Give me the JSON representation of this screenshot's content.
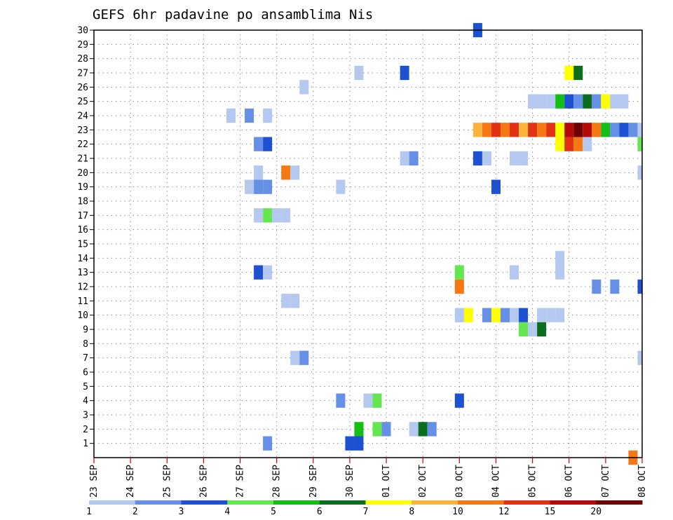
{
  "chart_data": {
    "type": "heatmap",
    "title": "GEFS 6hr padavine po ansamblima Nis",
    "xlabel": "",
    "ylabel": "",
    "x_ticks": [
      "23 SEP",
      "24 SEP",
      "25 SEP",
      "26 SEP",
      "27 SEP",
      "28 SEP",
      "29 SEP",
      "30 SEP",
      "01 OCT",
      "02 OCT",
      "03 OCT",
      "04 OCT",
      "05 OCT",
      "06 OCT",
      "07 OCT",
      "08 OCT"
    ],
    "y_ticks": [
      "1",
      "2",
      "3",
      "4",
      "5",
      "6",
      "7",
      "8",
      "9",
      "10",
      "11",
      "12",
      "13",
      "14",
      "15",
      "16",
      "17",
      "18",
      "19",
      "20",
      "21",
      "22",
      "23",
      "24",
      "25",
      "26",
      "27",
      "28",
      "29",
      "30"
    ],
    "xlim_days": [
      0,
      15
    ],
    "ylim": [
      0,
      30
    ],
    "grid": true,
    "colorbar": {
      "labels": [
        "1",
        "2",
        "3",
        "4",
        "5",
        "6",
        "7",
        "8",
        "10",
        "12",
        "15",
        "20"
      ],
      "colors": [
        "#b4c8f0",
        "#6690e6",
        "#1e50d2",
        "#64e650",
        "#14be14",
        "#0a6e1e",
        "#ffff00",
        "#fab43c",
        "#f57814",
        "#e13214",
        "#b40a0a",
        "#6e0000"
      ]
    },
    "cells": [
      {
        "m": 30,
        "d": 10.5,
        "c": 3
      },
      {
        "m": 27,
        "d": 7.25,
        "c": 1
      },
      {
        "m": 27,
        "d": 8.5,
        "c": 3
      },
      {
        "m": 27,
        "d": 13.0,
        "c": 7
      },
      {
        "m": 27,
        "d": 13.25,
        "c": 6
      },
      {
        "m": 26,
        "d": 5.75,
        "c": 1
      },
      {
        "m": 25,
        "d": 12.0,
        "c": 1
      },
      {
        "m": 25,
        "d": 12.25,
        "c": 1
      },
      {
        "m": 25,
        "d": 12.5,
        "c": 1
      },
      {
        "m": 25,
        "d": 12.75,
        "c": 5
      },
      {
        "m": 25,
        "d": 13.0,
        "c": 3
      },
      {
        "m": 25,
        "d": 13.25,
        "c": 2
      },
      {
        "m": 25,
        "d": 13.5,
        "c": 6
      },
      {
        "m": 25,
        "d": 13.75,
        "c": 2
      },
      {
        "m": 25,
        "d": 14.0,
        "c": 7
      },
      {
        "m": 25,
        "d": 14.25,
        "c": 1
      },
      {
        "m": 25,
        "d": 14.5,
        "c": 1
      },
      {
        "m": 24,
        "d": 3.75,
        "c": 1
      },
      {
        "m": 24,
        "d": 4.25,
        "c": 2
      },
      {
        "m": 24,
        "d": 4.75,
        "c": 1
      },
      {
        "m": 23,
        "d": 10.5,
        "c": 8
      },
      {
        "m": 23,
        "d": 10.75,
        "c": 9
      },
      {
        "m": 23,
        "d": 11.0,
        "c": 10
      },
      {
        "m": 23,
        "d": 11.25,
        "c": 9
      },
      {
        "m": 23,
        "d": 11.5,
        "c": 10
      },
      {
        "m": 23,
        "d": 11.75,
        "c": 8
      },
      {
        "m": 23,
        "d": 12.0,
        "c": 10
      },
      {
        "m": 23,
        "d": 12.25,
        "c": 9
      },
      {
        "m": 23,
        "d": 12.5,
        "c": 10
      },
      {
        "m": 23,
        "d": 12.75,
        "c": 7
      },
      {
        "m": 23,
        "d": 13.0,
        "c": 11
      },
      {
        "m": 23,
        "d": 13.25,
        "c": 12
      },
      {
        "m": 23,
        "d": 13.5,
        "c": 11
      },
      {
        "m": 23,
        "d": 13.75,
        "c": 9
      },
      {
        "m": 23,
        "d": 14.0,
        "c": 5
      },
      {
        "m": 23,
        "d": 14.25,
        "c": 2
      },
      {
        "m": 23,
        "d": 14.5,
        "c": 3
      },
      {
        "m": 23,
        "d": 14.75,
        "c": 2
      },
      {
        "m": 23,
        "d": 15.0,
        "c": 1
      },
      {
        "m": 22,
        "d": 4.5,
        "c": 2
      },
      {
        "m": 22,
        "d": 4.75,
        "c": 3
      },
      {
        "m": 22,
        "d": 12.75,
        "c": 7
      },
      {
        "m": 22,
        "d": 13.0,
        "c": 10
      },
      {
        "m": 22,
        "d": 13.25,
        "c": 9
      },
      {
        "m": 22,
        "d": 13.5,
        "c": 1
      },
      {
        "m": 22,
        "d": 15.0,
        "c": 4
      },
      {
        "m": 21,
        "d": 8.5,
        "c": 1
      },
      {
        "m": 21,
        "d": 8.75,
        "c": 2
      },
      {
        "m": 21,
        "d": 10.5,
        "c": 3
      },
      {
        "m": 21,
        "d": 10.75,
        "c": 1
      },
      {
        "m": 21,
        "d": 11.5,
        "c": 1
      },
      {
        "m": 21,
        "d": 11.75,
        "c": 1
      },
      {
        "m": 20,
        "d": 4.5,
        "c": 1
      },
      {
        "m": 20,
        "d": 5.25,
        "c": 9
      },
      {
        "m": 20,
        "d": 5.5,
        "c": 1
      },
      {
        "m": 20,
        "d": 15.0,
        "c": 1
      },
      {
        "m": 19,
        "d": 4.25,
        "c": 1
      },
      {
        "m": 19,
        "d": 4.5,
        "c": 2
      },
      {
        "m": 19,
        "d": 4.75,
        "c": 2
      },
      {
        "m": 19,
        "d": 6.75,
        "c": 1
      },
      {
        "m": 19,
        "d": 11.0,
        "c": 3
      },
      {
        "m": 17,
        "d": 4.5,
        "c": 1
      },
      {
        "m": 17,
        "d": 4.75,
        "c": 4
      },
      {
        "m": 17,
        "d": 5.0,
        "c": 1
      },
      {
        "m": 17,
        "d": 5.25,
        "c": 1
      },
      {
        "m": 14,
        "d": 12.75,
        "c": 1
      },
      {
        "m": 13,
        "d": 4.5,
        "c": 3
      },
      {
        "m": 13,
        "d": 4.75,
        "c": 1
      },
      {
        "m": 13,
        "d": 10.0,
        "c": 4
      },
      {
        "m": 13,
        "d": 11.5,
        "c": 1
      },
      {
        "m": 13,
        "d": 12.75,
        "c": 1
      },
      {
        "m": 12,
        "d": 10.0,
        "c": 9
      },
      {
        "m": 12,
        "d": 13.75,
        "c": 2
      },
      {
        "m": 12,
        "d": 14.25,
        "c": 2
      },
      {
        "m": 12,
        "d": 15.0,
        "c": 3
      },
      {
        "m": 11,
        "d": 5.25,
        "c": 1
      },
      {
        "m": 11,
        "d": 5.5,
        "c": 1
      },
      {
        "m": 10,
        "d": 10.0,
        "c": 1
      },
      {
        "m": 10,
        "d": 10.25,
        "c": 7
      },
      {
        "m": 10,
        "d": 10.75,
        "c": 2
      },
      {
        "m": 10,
        "d": 11.0,
        "c": 7
      },
      {
        "m": 10,
        "d": 11.25,
        "c": 2
      },
      {
        "m": 10,
        "d": 11.5,
        "c": 1
      },
      {
        "m": 10,
        "d": 11.75,
        "c": 3
      },
      {
        "m": 10,
        "d": 12.25,
        "c": 1
      },
      {
        "m": 10,
        "d": 12.5,
        "c": 1
      },
      {
        "m": 10,
        "d": 12.75,
        "c": 1
      },
      {
        "m": 9,
        "d": 11.75,
        "c": 4
      },
      {
        "m": 9,
        "d": 12.0,
        "c": 1
      },
      {
        "m": 9,
        "d": 12.25,
        "c": 6
      },
      {
        "m": 7,
        "d": 5.5,
        "c": 1
      },
      {
        "m": 7,
        "d": 5.75,
        "c": 2
      },
      {
        "m": 7,
        "d": 15.0,
        "c": 1
      },
      {
        "m": 4,
        "d": 6.75,
        "c": 2
      },
      {
        "m": 4,
        "d": 7.5,
        "c": 1
      },
      {
        "m": 4,
        "d": 7.75,
        "c": 4
      },
      {
        "m": 4,
        "d": 10.0,
        "c": 3
      },
      {
        "m": 2,
        "d": 7.25,
        "c": 5
      },
      {
        "m": 2,
        "d": 7.75,
        "c": 4
      },
      {
        "m": 2,
        "d": 8.0,
        "c": 2
      },
      {
        "m": 2,
        "d": 8.75,
        "c": 1
      },
      {
        "m": 2,
        "d": 9.0,
        "c": 6
      },
      {
        "m": 2,
        "d": 9.25,
        "c": 2
      },
      {
        "m": 1,
        "d": 4.75,
        "c": 2
      },
      {
        "m": 1,
        "d": 7.0,
        "c": 3
      },
      {
        "m": 1,
        "d": 7.25,
        "c": 3
      },
      {
        "m": 0,
        "d": 14.75,
        "c": 9
      }
    ]
  }
}
